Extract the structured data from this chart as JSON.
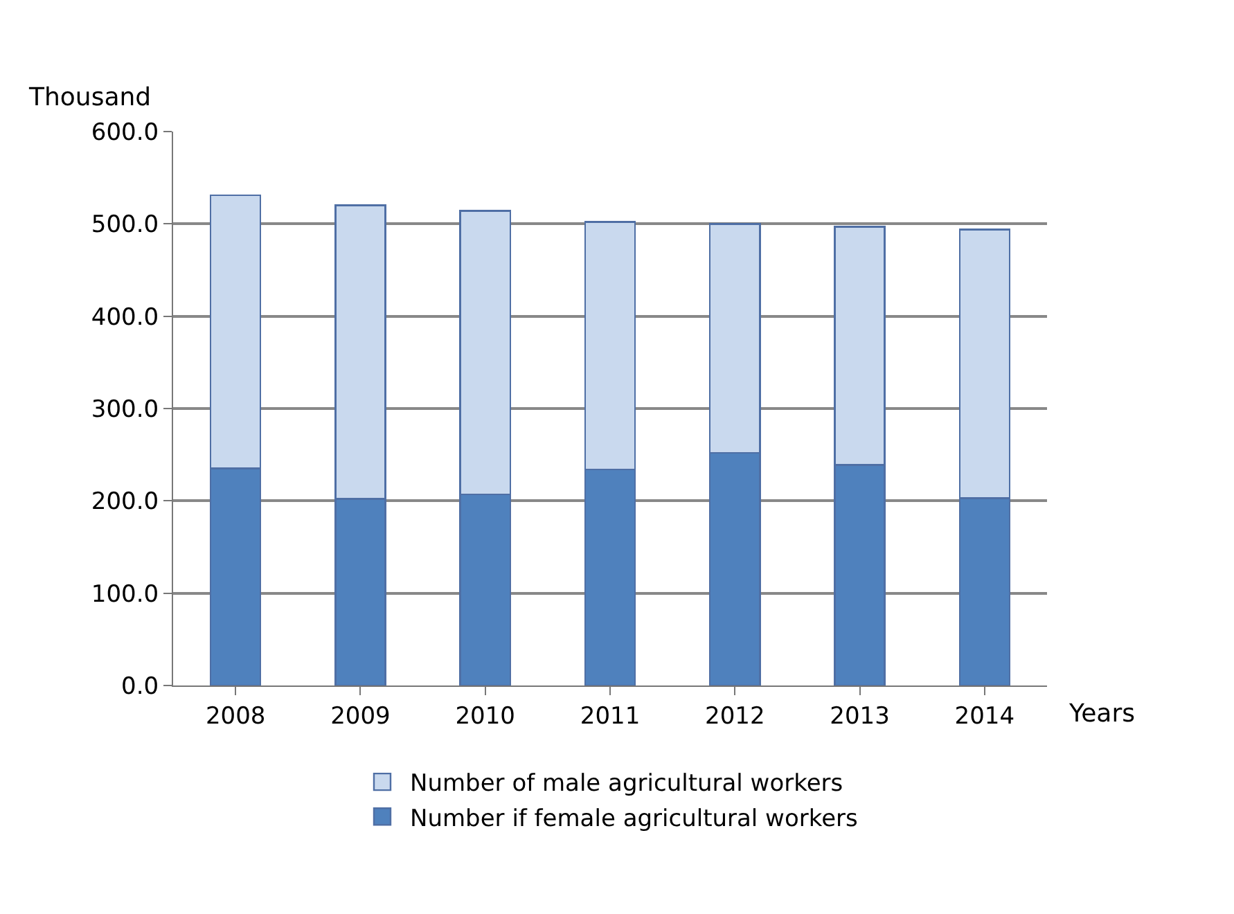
{
  "chart_data": {
    "type": "bar",
    "stacked": true,
    "xlabel": "Years",
    "ylabel": "Thousand",
    "categories": [
      "2008",
      "2009",
      "2010",
      "2011",
      "2012",
      "2013",
      "2014"
    ],
    "series": [
      {
        "name": "Number if female agricultural workers",
        "color": "#4f81bd",
        "values": [
          235,
          202,
          207,
          234,
          252,
          239,
          203
        ]
      },
      {
        "name": "Number of male agricultural workers",
        "color": "#c9d9ee",
        "values": [
          296,
          318,
          307,
          268,
          248,
          258,
          291
        ]
      }
    ],
    "ylim": [
      0,
      600
    ],
    "yticks": [
      {
        "value": 0,
        "label": "0.0"
      },
      {
        "value": 100,
        "label": "100.0"
      },
      {
        "value": 200,
        "label": "200.0"
      },
      {
        "value": 300,
        "label": "300.0"
      },
      {
        "value": 400,
        "label": "400.0"
      },
      {
        "value": 500,
        "label": "500.0"
      },
      {
        "value": 600,
        "label": "600.0"
      }
    ],
    "grid": "y",
    "legend": "bottom"
  }
}
